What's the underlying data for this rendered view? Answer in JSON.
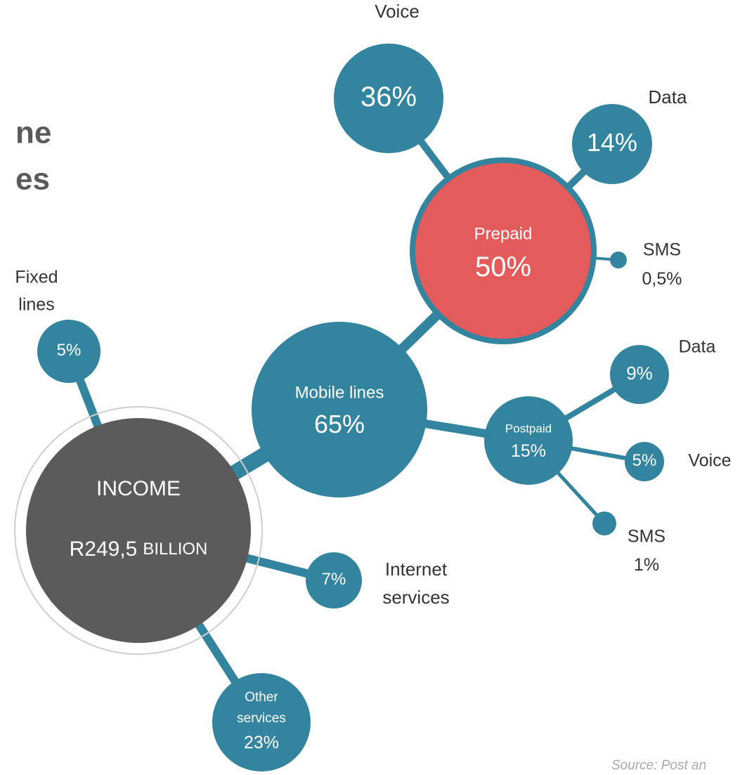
{
  "title_fragments": [
    "ne",
    "es"
  ],
  "nodes": [
    {
      "label": [
        "INCOME"
      ],
      "value": "R249,5",
      "unit": "BILLION"
    },
    {
      "label": [
        "Mobile lines"
      ],
      "value": "65%"
    },
    {
      "label": [
        "Prepaid"
      ],
      "value": "50%"
    },
    {
      "label": [
        "Voice"
      ],
      "value": "36%"
    },
    {
      "label": [
        "Data"
      ],
      "value": "14%"
    },
    {
      "label": [
        "SMS"
      ],
      "value": "0,5%"
    },
    {
      "label": [
        "Postpaid"
      ],
      "value": "15%"
    },
    {
      "label": [
        "Data"
      ],
      "value": "9%"
    },
    {
      "label": [
        "Voice"
      ],
      "value": "5%"
    },
    {
      "label": [
        "SMS"
      ],
      "value": "1%"
    },
    {
      "label": [
        "Fixed",
        "lines"
      ],
      "value": "5%"
    },
    {
      "label": [
        "Internet",
        "services"
      ],
      "value": "7%"
    },
    {
      "label": [
        "Other",
        "services"
      ],
      "value": "23%"
    }
  ],
  "source": "Source: Post an"
}
